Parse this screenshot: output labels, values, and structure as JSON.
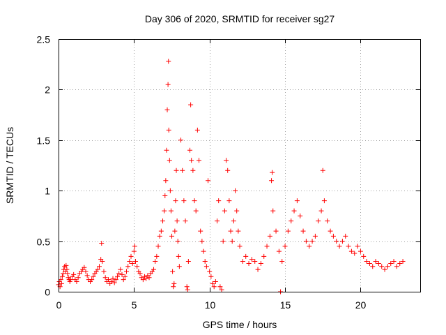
{
  "chart_data": {
    "type": "scatter",
    "title": "Day 306 of 2020, SRMTID for receiver sg27",
    "xlabel": "GPS time / hours",
    "ylabel": "SRMTID / TECUs",
    "xlim": [
      0,
      23.95
    ],
    "ylim": [
      0,
      2.5
    ],
    "xticks": [
      0,
      5,
      10,
      15,
      20
    ],
    "yticks": [
      0,
      0.5,
      1,
      1.5,
      2,
      2.5
    ],
    "ytick_labels": [
      "0",
      "0.5",
      "1",
      "1.5",
      "2",
      "2.5"
    ],
    "grid": true,
    "marker": "+",
    "color": "#ff0000",
    "series": [
      {
        "name": "SRMTID",
        "points": [
          [
            0.0,
            0.07
          ],
          [
            0.05,
            0.1
          ],
          [
            0.1,
            0.05
          ],
          [
            0.15,
            0.12
          ],
          [
            0.2,
            0.08
          ],
          [
            0.25,
            0.15
          ],
          [
            0.3,
            0.18
          ],
          [
            0.35,
            0.22
          ],
          [
            0.4,
            0.25
          ],
          [
            0.45,
            0.2
          ],
          [
            0.5,
            0.26
          ],
          [
            0.55,
            0.22
          ],
          [
            0.6,
            0.18
          ],
          [
            0.65,
            0.14
          ],
          [
            0.7,
            0.12
          ],
          [
            0.75,
            0.1
          ],
          [
            0.8,
            0.12
          ],
          [
            0.9,
            0.15
          ],
          [
            1.0,
            0.17
          ],
          [
            1.1,
            0.12
          ],
          [
            1.2,
            0.1
          ],
          [
            1.3,
            0.14
          ],
          [
            1.4,
            0.18
          ],
          [
            1.5,
            0.2
          ],
          [
            1.6,
            0.22
          ],
          [
            1.7,
            0.24
          ],
          [
            1.8,
            0.2
          ],
          [
            1.9,
            0.16
          ],
          [
            2.0,
            0.12
          ],
          [
            2.1,
            0.1
          ],
          [
            2.2,
            0.12
          ],
          [
            2.3,
            0.15
          ],
          [
            2.4,
            0.18
          ],
          [
            2.5,
            0.2
          ],
          [
            2.6,
            0.22
          ],
          [
            2.7,
            0.25
          ],
          [
            2.8,
            0.32
          ],
          [
            2.85,
            0.48
          ],
          [
            2.9,
            0.3
          ],
          [
            3.0,
            0.2
          ],
          [
            3.1,
            0.14
          ],
          [
            3.2,
            0.1
          ],
          [
            3.3,
            0.12
          ],
          [
            3.4,
            0.08
          ],
          [
            3.5,
            0.1
          ],
          [
            3.6,
            0.13
          ],
          [
            3.7,
            0.09
          ],
          [
            3.8,
            0.12
          ],
          [
            3.9,
            0.15
          ],
          [
            4.0,
            0.18
          ],
          [
            4.1,
            0.22
          ],
          [
            4.2,
            0.17
          ],
          [
            4.3,
            0.12
          ],
          [
            4.4,
            0.15
          ],
          [
            4.5,
            0.2
          ],
          [
            4.6,
            0.25
          ],
          [
            4.7,
            0.3
          ],
          [
            4.8,
            0.35
          ],
          [
            4.9,
            0.28
          ],
          [
            5.0,
            0.4
          ],
          [
            5.05,
            0.45
          ],
          [
            5.1,
            0.3
          ],
          [
            5.2,
            0.25
          ],
          [
            5.3,
            0.2
          ],
          [
            5.4,
            0.18
          ],
          [
            5.5,
            0.14
          ],
          [
            5.6,
            0.12
          ],
          [
            5.7,
            0.15
          ],
          [
            5.8,
            0.13
          ],
          [
            5.9,
            0.16
          ],
          [
            6.0,
            0.14
          ],
          [
            6.1,
            0.18
          ],
          [
            6.2,
            0.2
          ],
          [
            6.3,
            0.22
          ],
          [
            6.4,
            0.3
          ],
          [
            6.5,
            0.35
          ],
          [
            6.6,
            0.45
          ],
          [
            6.7,
            0.55
          ],
          [
            6.8,
            0.6
          ],
          [
            6.9,
            0.7
          ],
          [
            7.0,
            0.8
          ],
          [
            7.05,
            0.95
          ],
          [
            7.1,
            1.1
          ],
          [
            7.15,
            1.4
          ],
          [
            7.2,
            1.8
          ],
          [
            7.25,
            2.05
          ],
          [
            7.28,
            2.28
          ],
          [
            7.3,
            1.6
          ],
          [
            7.35,
            1.3
          ],
          [
            7.4,
            1.0
          ],
          [
            7.45,
            0.8
          ],
          [
            7.5,
            0.55
          ],
          [
            7.55,
            0.2
          ],
          [
            7.6,
            0.05
          ],
          [
            7.65,
            0.08
          ],
          [
            7.7,
            0.6
          ],
          [
            7.75,
            0.9
          ],
          [
            7.8,
            1.2
          ],
          [
            7.85,
            0.7
          ],
          [
            7.9,
            0.5
          ],
          [
            7.95,
            0.35
          ],
          [
            8.0,
            0.25
          ],
          [
            8.1,
            1.5
          ],
          [
            8.2,
            1.2
          ],
          [
            8.3,
            0.9
          ],
          [
            8.4,
            0.7
          ],
          [
            8.5,
            0.05
          ],
          [
            8.55,
            0.02
          ],
          [
            8.6,
            0.3
          ],
          [
            8.7,
            1.4
          ],
          [
            8.75,
            1.85
          ],
          [
            8.8,
            1.3
          ],
          [
            8.9,
            1.2
          ],
          [
            9.0,
            0.9
          ],
          [
            9.1,
            0.8
          ],
          [
            9.2,
            1.6
          ],
          [
            9.3,
            1.3
          ],
          [
            9.4,
            0.6
          ],
          [
            9.5,
            0.5
          ],
          [
            9.6,
            0.4
          ],
          [
            9.7,
            0.3
          ],
          [
            9.8,
            0.25
          ],
          [
            9.9,
            1.1
          ],
          [
            10.0,
            0.2
          ],
          [
            10.1,
            0.15
          ],
          [
            10.2,
            0.08
          ],
          [
            10.3,
            0.05
          ],
          [
            10.4,
            0.1
          ],
          [
            10.5,
            0.7
          ],
          [
            10.6,
            0.9
          ],
          [
            10.7,
            0.05
          ],
          [
            10.8,
            0.02
          ],
          [
            10.9,
            0.5
          ],
          [
            11.0,
            0.8
          ],
          [
            11.1,
            1.3
          ],
          [
            11.2,
            1.2
          ],
          [
            11.3,
            0.9
          ],
          [
            11.4,
            0.6
          ],
          [
            11.5,
            0.5
          ],
          [
            11.6,
            0.7
          ],
          [
            11.7,
            1.0
          ],
          [
            11.8,
            0.8
          ],
          [
            11.9,
            0.6
          ],
          [
            12.0,
            0.45
          ],
          [
            12.2,
            0.3
          ],
          [
            12.4,
            0.35
          ],
          [
            12.6,
            0.28
          ],
          [
            12.8,
            0.32
          ],
          [
            13.0,
            0.3
          ],
          [
            13.2,
            0.22
          ],
          [
            13.4,
            0.28
          ],
          [
            13.6,
            0.35
          ],
          [
            13.8,
            0.45
          ],
          [
            14.0,
            0.55
          ],
          [
            14.1,
            1.1
          ],
          [
            14.15,
            1.18
          ],
          [
            14.2,
            0.8
          ],
          [
            14.4,
            0.6
          ],
          [
            14.6,
            0.4
          ],
          [
            14.7,
            0.0
          ],
          [
            14.8,
            0.3
          ],
          [
            15.0,
            0.45
          ],
          [
            15.2,
            0.6
          ],
          [
            15.4,
            0.7
          ],
          [
            15.6,
            0.8
          ],
          [
            15.8,
            0.9
          ],
          [
            16.0,
            0.75
          ],
          [
            16.2,
            0.6
          ],
          [
            16.4,
            0.5
          ],
          [
            16.6,
            0.45
          ],
          [
            16.8,
            0.5
          ],
          [
            17.0,
            0.55
          ],
          [
            17.2,
            0.7
          ],
          [
            17.4,
            0.8
          ],
          [
            17.5,
            1.2
          ],
          [
            17.6,
            0.9
          ],
          [
            17.8,
            0.7
          ],
          [
            18.0,
            0.6
          ],
          [
            18.2,
            0.55
          ],
          [
            18.4,
            0.5
          ],
          [
            18.6,
            0.45
          ],
          [
            18.8,
            0.5
          ],
          [
            19.0,
            0.55
          ],
          [
            19.2,
            0.45
          ],
          [
            19.4,
            0.4
          ],
          [
            19.6,
            0.38
          ],
          [
            19.8,
            0.45
          ],
          [
            20.0,
            0.4
          ],
          [
            20.2,
            0.35
          ],
          [
            20.4,
            0.3
          ],
          [
            20.6,
            0.28
          ],
          [
            20.8,
            0.25
          ],
          [
            21.0,
            0.3
          ],
          [
            21.2,
            0.28
          ],
          [
            21.4,
            0.25
          ],
          [
            21.6,
            0.22
          ],
          [
            21.8,
            0.25
          ],
          [
            22.0,
            0.28
          ],
          [
            22.2,
            0.3
          ],
          [
            22.4,
            0.25
          ],
          [
            22.6,
            0.28
          ],
          [
            22.8,
            0.3
          ]
        ]
      }
    ]
  }
}
